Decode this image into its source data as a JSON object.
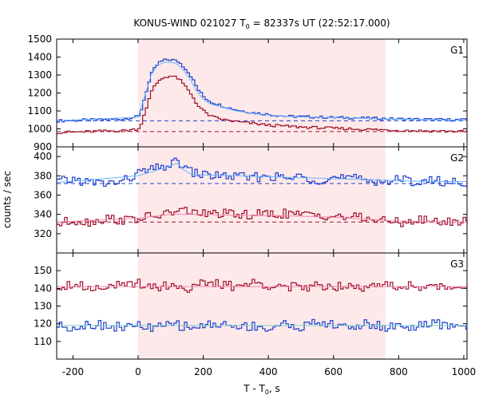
{
  "chart_data": {
    "type": "line",
    "title": "KONUS-WIND 021027 T",
    "title_sub": "0",
    "title_rest": " = 82337s UT (22:52:17.000)",
    "xlabel": "T - T",
    "xlabel_sub": "0",
    "xlabel_rest": ", s",
    "ylabel": "counts / sec",
    "xlim": [
      -250,
      1010
    ],
    "xticks": [
      "-200",
      "0",
      "200",
      "400",
      "600",
      "800",
      "1000"
    ],
    "xtick_values": [
      -200,
      0,
      200,
      400,
      600,
      800,
      1000
    ],
    "highlight_interval": [
      0,
      760
    ],
    "colors": {
      "highlight": "#fde9ea",
      "red": "#a0102a",
      "blue": "#1f3fcc",
      "light_blue": "#6cb6ff",
      "pink": "#f08ab8",
      "teal": "#7fd0c8"
    },
    "panels": [
      {
        "name": "G1",
        "ylim": [
          900,
          1500
        ],
        "yticks": [
          "900",
          "1000",
          "1100",
          "1200",
          "1300",
          "1400",
          "1500"
        ],
        "ytick_values": [
          900,
          1000,
          1100,
          1200,
          1300,
          1400,
          1500
        ],
        "series": [
          {
            "color": "#1f3fcc",
            "style": "step",
            "x": [
              -250,
              -200,
              -150,
              -100,
              -50,
              0,
              20,
              40,
              60,
              80,
              100,
              120,
              140,
              160,
              180,
              200,
              220,
              260,
              300,
              350,
              400,
              450,
              500,
              600,
              700,
              800,
              900,
              1010
            ],
            "y": [
              1045,
              1048,
              1050,
              1052,
              1055,
              1070,
              1200,
              1320,
              1370,
              1385,
              1385,
              1375,
              1340,
              1290,
              1220,
              1175,
              1150,
              1125,
              1105,
              1090,
              1080,
              1070,
              1068,
              1063,
              1060,
              1055,
              1052,
              1050
            ]
          },
          {
            "color": "#6cb6ff",
            "style": "line",
            "x": [
              -250,
              0,
              20,
              40,
              60,
              80,
              100,
              120,
              140,
              160,
              180,
              200,
              220,
              260,
              300,
              350,
              400,
              450,
              500,
              600,
              700,
              800,
              900,
              1010
            ],
            "y": [
              1045,
              1065,
              1180,
              1300,
              1355,
              1370,
              1372,
              1360,
              1325,
              1275,
              1210,
              1165,
              1140,
              1120,
              1100,
              1088,
              1078,
              1070,
              1066,
              1062,
              1058,
              1054,
              1050,
              1048
            ]
          },
          {
            "color": "#a0102a",
            "style": "step",
            "x": [
              -250,
              -200,
              -150,
              -100,
              -50,
              0,
              20,
              40,
              60,
              80,
              100,
              120,
              140,
              160,
              180,
              200,
              220,
              260,
              300,
              350,
              400,
              450,
              500,
              600,
              700,
              800,
              900,
              1010
            ],
            "y": [
              980,
              982,
              985,
              988,
              990,
              1000,
              1110,
              1220,
              1270,
              1290,
              1295,
              1280,
              1240,
              1190,
              1130,
              1095,
              1070,
              1050,
              1040,
              1030,
              1020,
              1015,
              1010,
              1003,
              997,
              992,
              988,
              985
            ]
          }
        ],
        "hlines": [
          {
            "value": 1045,
            "color": "#1f3fcc"
          },
          {
            "value": 985,
            "color": "#a0102a"
          }
        ]
      },
      {
        "name": "G2",
        "ylim": [
          300,
          410
        ],
        "yticks": [
          "300",
          "320",
          "340",
          "360",
          "380",
          "400"
        ],
        "ytick_values": [
          300,
          320,
          340,
          360,
          380,
          400
        ],
        "series": [
          {
            "color": "#1f3fcc",
            "style": "step",
            "x": [
              -250,
              -200,
              -150,
              -100,
              -50,
              0,
              20,
              40,
              60,
              80,
              100,
              120,
              140,
              160,
              180,
              200,
              250,
              300,
              350,
              400,
              450,
              500,
              550,
              600,
              650,
              700,
              750,
              800,
              850,
              900,
              950,
              1010
            ],
            "y": [
              374,
              376,
              373,
              372,
              374,
              383,
              385,
              386,
              388,
              390,
              392,
              395,
              388,
              384,
              382,
              381,
              380,
              379,
              378,
              380,
              377,
              379,
              376,
              378,
              377,
              376,
              374,
              376,
              374,
              375,
              373,
              374
            ]
          },
          {
            "color": "#6cb6ff",
            "style": "line",
            "x": [
              -250,
              0,
              40,
              80,
              120,
              140,
              160,
              200,
              300,
              400,
              500,
              600,
              700,
              800,
              900,
              1010
            ],
            "y": [
              373,
              380,
              384,
              388,
              393,
              386,
              382,
              381,
              380,
              379,
              378,
              377,
              376,
              375,
              374,
              374
            ]
          },
          {
            "color": "#a0102a",
            "style": "step",
            "x": [
              -250,
              -200,
              -150,
              -100,
              -50,
              0,
              50,
              100,
              150,
              200,
              250,
              300,
              350,
              400,
              450,
              500,
              550,
              600,
              650,
              700,
              750,
              800,
              850,
              900,
              950,
              1010
            ],
            "y": [
              330,
              334,
              332,
              336,
              334,
              336,
              338,
              342,
              344,
              340,
              341,
              339,
              340,
              340,
              341,
              339,
              340,
              338,
              337,
              336,
              333,
              332,
              334,
              333,
              332,
              334
            ]
          },
          {
            "color": "#f08ab8",
            "style": "line",
            "x": [
              -250,
              0,
              100,
              200,
              300,
              400,
              500,
              600,
              700,
              800,
              1010
            ],
            "y": [
              332,
              336,
              340,
              340,
              339,
              339,
              338,
              337,
              335,
              333,
              332
            ]
          }
        ],
        "hlines": [
          {
            "value": 372,
            "color": "#1f3fcc"
          },
          {
            "value": 332,
            "color": "#a0102a"
          }
        ]
      },
      {
        "name": "G3",
        "ylim": [
          100,
          160
        ],
        "yticks": [
          "100",
          "110",
          "120",
          "130",
          "140",
          "150"
        ],
        "ytick_values": [
          100,
          110,
          120,
          130,
          140,
          150
        ],
        "series": [
          {
            "color": "#a0102a",
            "style": "step",
            "x": [
              -250,
              -200,
              -150,
              -100,
              -50,
              0,
              50,
              100,
              150,
              200,
              250,
              300,
              350,
              400,
              450,
              500,
              550,
              600,
              650,
              700,
              750,
              800,
              850,
              900,
              950,
              1010
            ],
            "y": [
              141,
              143,
              140,
              142,
              141,
              143,
              141,
              142,
              140,
              143,
              142,
              141,
              143,
              142,
              141,
              140,
              142,
              141,
              143,
              140,
              142,
              141,
              142,
              140,
              141,
              141
            ]
          },
          {
            "color": "#f08ab8",
            "style": "line",
            "x": [
              -250,
              1010
            ],
            "y": [
              141,
              141
            ]
          },
          {
            "color": "#1f3fcc",
            "style": "step",
            "x": [
              -250,
              -200,
              -150,
              -100,
              -50,
              0,
              50,
              100,
              150,
              200,
              250,
              300,
              350,
              400,
              450,
              500,
              550,
              600,
              650,
              700,
              750,
              800,
              850,
              900,
              950,
              1010
            ],
            "y": [
              119,
              118,
              120,
              119,
              118,
              119,
              117,
              120,
              118,
              119,
              120,
              118,
              119,
              117,
              120,
              118,
              121,
              119,
              118,
              120,
              118,
              119,
              118,
              120,
              119,
              119
            ]
          },
          {
            "color": "#7fd0c8",
            "style": "line",
            "x": [
              -250,
              1010
            ],
            "y": [
              119,
              119
            ]
          }
        ],
        "hlines": []
      }
    ]
  }
}
